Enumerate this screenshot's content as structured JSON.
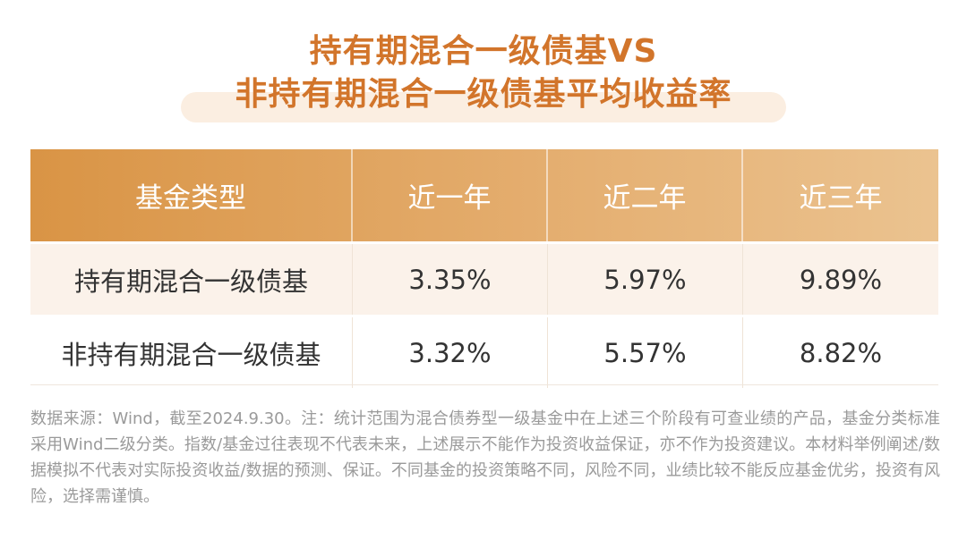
{
  "title": {
    "line1": "持有期混合一级债基VS",
    "line2": "非持有期混合一级债基平均收益率"
  },
  "table": {
    "headers": [
      "基金类型",
      "近一年",
      "近二年",
      "近三年"
    ],
    "rows": [
      [
        "持有期混合一级债基",
        "3.35%",
        "5.97%",
        "9.89%"
      ],
      [
        "非持有期混合一级债基",
        "3.32%",
        "5.57%",
        "8.82%"
      ]
    ]
  },
  "footnote": {
    "source": "数据来源：Wind，截至2024.9.30。注：统计范围为混合债券型一级基金中在上述三个阶段有可查业绩的产品，基金分类标准采用Wind二级分类。",
    "disclaimer": "指数/基金过往表现不代表未来，上述展示不能作为投资收益保证，亦不作为投资建议。本材料举例阐述/数据模拟不代表对实际投资收益/数据的预测、保证。不同基金的投资策略不同，风险不同，业绩比较不能反应基金优劣，投资有风险，选择需谨慎。"
  },
  "colors": {
    "title": "#d2752b",
    "header_start": "#d99445",
    "header_end": "#ebc390",
    "row_alt": "#fbf2ea",
    "footnote": "#9a9a9a"
  }
}
